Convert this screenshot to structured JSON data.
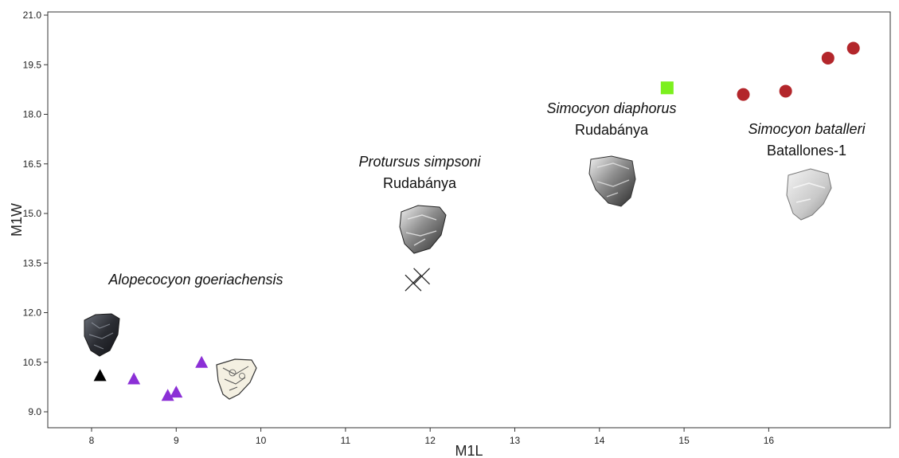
{
  "chart_data": {
    "type": "scatter",
    "xlabel": "M1L",
    "ylabel": "M1W",
    "xlim": [
      7.5,
      17.5
    ],
    "ylim": [
      8.6,
      21.0
    ],
    "xticks": [
      8,
      9,
      10,
      11,
      12,
      13,
      14,
      15,
      16
    ],
    "xtick_labels": [
      "8",
      "9",
      "10",
      "11",
      "12",
      "13",
      "14",
      "15",
      "16"
    ],
    "yticks": [
      9.0,
      10.5,
      12.0,
      13.5,
      15.0,
      16.5,
      18.0,
      19.5,
      21.0
    ],
    "ytick_labels": [
      "9.0",
      "10.5",
      "12.0",
      "13.5",
      "15.0",
      "16.5",
      "18.0",
      "19.5",
      "21.0"
    ],
    "grid": false,
    "series": [
      {
        "marker": "triangle",
        "color": "#000000",
        "points": [
          [
            8.1,
            10.1
          ]
        ]
      },
      {
        "marker": "triangle",
        "color": "#8b2fd6",
        "points": [
          [
            8.5,
            10.0
          ],
          [
            8.9,
            9.5
          ],
          [
            9.0,
            9.6
          ],
          [
            9.3,
            10.5
          ]
        ]
      },
      {
        "marker": "x",
        "color": "#222222",
        "points": [
          [
            11.8,
            12.9
          ],
          [
            11.9,
            13.1
          ]
        ]
      },
      {
        "marker": "square",
        "color": "#7cf01e",
        "points": [
          [
            14.8,
            18.8
          ]
        ]
      },
      {
        "marker": "circle",
        "color": "#b3262b",
        "points": [
          [
            15.7,
            18.6
          ],
          [
            16.2,
            18.7
          ],
          [
            16.7,
            19.7
          ],
          [
            17.0,
            20.0
          ]
        ]
      }
    ],
    "annotations": [
      {
        "species": "Alopecocyon goeriachensis",
        "locality": ""
      },
      {
        "species": "Protursus simpsoni",
        "locality": "Rudabánya"
      },
      {
        "species": "Simocyon diaphorus",
        "locality": "Rudabánya"
      },
      {
        "species": "Simocyon batalleri",
        "locality": "Batallones-1"
      }
    ]
  }
}
